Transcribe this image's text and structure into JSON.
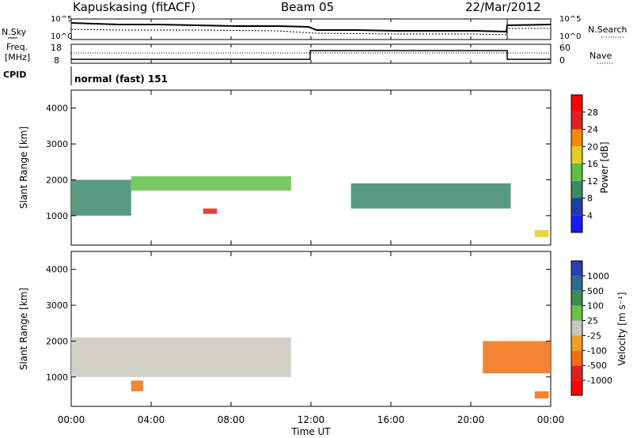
{
  "header": {
    "station": "Kapuskasing (fitACF)",
    "beam": "Beam 05",
    "date": "22/Mar/2012"
  },
  "noise_panel": {
    "left_label": "N.Sky",
    "right_label": "N.Search",
    "tick_top": "10^5",
    "tick_bottom": "10^0"
  },
  "freq_panel": {
    "left_label_1": "Freq.",
    "left_label_2": "[MHz]",
    "right_label": "Nave",
    "left_ticks": [
      "18",
      "8"
    ],
    "right_ticks": [
      "60",
      "0"
    ]
  },
  "cpid": {
    "label": "CPID",
    "value": "normal (fast) 151"
  },
  "axes": {
    "ylabel": "Slant Range [km]",
    "xlabel": "Time UT",
    "y_ticks": [
      "1000",
      "2000",
      "3000",
      "4000"
    ],
    "x_ticks": [
      "00:00",
      "04:00",
      "08:00",
      "12:00",
      "16:00",
      "20:00",
      "00:00"
    ]
  },
  "power_colorbar": {
    "label": "Power [dB]",
    "ticks": [
      "4",
      "8",
      "12",
      "16",
      "20",
      "24",
      "28"
    ],
    "colors": [
      "#1a1aff",
      "#1f3fa8",
      "#3c8a6a",
      "#5fbf45",
      "#e0d020",
      "#f08a10",
      "#e02020",
      "#ff0000"
    ]
  },
  "velocity_colorbar": {
    "label": "Velocity [m s⁻¹]",
    "ticks": [
      "1000",
      "500",
      "100",
      "25",
      "-25",
      "-100",
      "-500",
      "-1000"
    ],
    "colors": [
      "#2a3fb0",
      "#2e6a8a",
      "#3f8a55",
      "#6ac040",
      "#c8c8c0",
      "#f0a020",
      "#f07010",
      "#e02020",
      "#ff0000"
    ]
  },
  "chart_data": {
    "type": "heatmap",
    "xlim_hours": [
      0,
      24
    ],
    "ylim_km": [
      180,
      4500
    ],
    "power_panel": {
      "features": [
        {
          "t_start": 0.0,
          "t_end": 3.0,
          "range_lo": 1000,
          "range_hi": 2000,
          "power_db": 8
        },
        {
          "t_start": 3.0,
          "t_end": 11.0,
          "range_lo": 1700,
          "range_hi": 2100,
          "power_db": 12
        },
        {
          "t_start": 6.6,
          "t_end": 7.3,
          "range_lo": 1050,
          "range_hi": 1200,
          "power_db": 26
        },
        {
          "t_start": 14.0,
          "t_end": 22.0,
          "range_lo": 1200,
          "range_hi": 1900,
          "power_db": 8
        },
        {
          "t_start": 23.2,
          "t_end": 23.9,
          "range_lo": 400,
          "range_hi": 600,
          "power_db": 18
        }
      ]
    },
    "velocity_panel": {
      "features": [
        {
          "t_start": 0.0,
          "t_end": 11.0,
          "range_lo": 1000,
          "range_hi": 2100,
          "velocity": 0
        },
        {
          "t_start": 3.0,
          "t_end": 3.6,
          "range_lo": 600,
          "range_hi": 900,
          "velocity": -400
        },
        {
          "t_start": 20.6,
          "t_end": 24.0,
          "range_lo": 1100,
          "range_hi": 2000,
          "velocity": -300
        },
        {
          "t_start": 23.2,
          "t_end": 23.9,
          "range_lo": 400,
          "range_hi": 600,
          "velocity": -400
        }
      ]
    }
  }
}
